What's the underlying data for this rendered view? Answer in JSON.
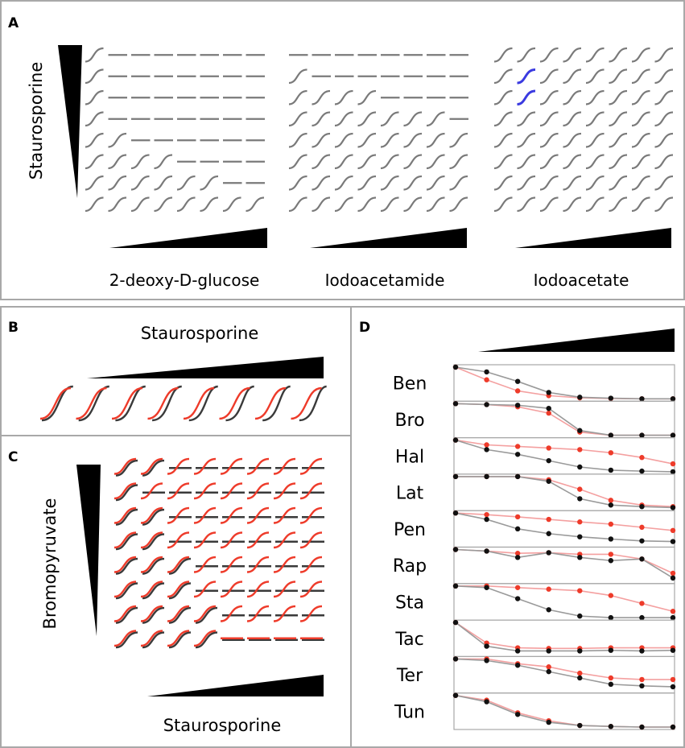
{
  "panels": {
    "a": {
      "letter": "A",
      "vertical_label": "Staurosporine",
      "grids": [
        {
          "name": "2-deoxy-D-glucose",
          "shape": [
            "S.......",
            "S.......",
            "S.......",
            "SD......",
            "SSD.....",
            "SSSSD...",
            "SSSSSSD.",
            "SSSSSSSS"
          ]
        },
        {
          "name": "Iodoacetamide",
          "shape": [
            "DDDDDDDD",
            "SDDDDDDD",
            "SSSSDDDD",
            "SSSSSSSD",
            "SSSSSSSS",
            "SSSSSSSS",
            "SSSSSSSS",
            "SSSSSSSS"
          ]
        },
        {
          "name": "Iodoacetate",
          "shape": [
            "SSSSSSSS",
            "SSSSSSSS",
            "SSSSSSSS",
            "SSSSSSSS",
            "SSSSSSSS",
            "SSSSSSSS",
            "SSSSSSSS",
            "SSSSSSSS"
          ],
          "highlight_color": "#3a3ae0",
          "highlight_cells": [
            [
              1,
              1
            ],
            [
              2,
              1
            ]
          ]
        }
      ]
    },
    "b": {
      "letter": "B",
      "title": "Staurosporine",
      "count": 8
    },
    "c": {
      "letter": "C",
      "vertical_label": "Bromopyruvate",
      "bottom_label": "Staurosporine",
      "black_shape": [
        "SSDDDDDD",
        "SDDDDDDD",
        "SSDDDDDD",
        "SSDDDDDD",
        "SSSDDDDD",
        "SSSDDDDD",
        "SSSSDDDD",
        "SSSSDDDD"
      ],
      "red_shape": [
        "SSSSSSSS",
        "SSSSSSSS",
        "SSSSSSSS",
        "SSSSSSSS",
        "SSSSSSSS",
        "SSSSSSSS",
        "SSSSSSSS",
        "SSSSDDDD"
      ]
    },
    "d": {
      "letter": "D",
      "rows": [
        {
          "label": "Ben",
          "black": [
            1.0,
            0.85,
            0.55,
            0.2,
            0.05,
            0.02,
            0.0,
            0.0
          ],
          "red": [
            1.0,
            0.6,
            0.25,
            0.1,
            0.03,
            0.01,
            0.0,
            0.0
          ]
        },
        {
          "label": "Bro",
          "black": [
            1.0,
            0.97,
            0.95,
            0.85,
            0.15,
            0.0,
            0.0,
            0.0
          ],
          "red": [
            1.0,
            0.97,
            0.9,
            0.7,
            0.1,
            0.0,
            0.0,
            0.0
          ]
        },
        {
          "label": "Hal",
          "black": [
            1.0,
            0.7,
            0.55,
            0.35,
            0.15,
            0.05,
            0.02,
            0.0
          ],
          "red": [
            1.0,
            0.85,
            0.8,
            0.75,
            0.7,
            0.6,
            0.45,
            0.25
          ]
        },
        {
          "label": "Lat",
          "black": [
            1.0,
            1.0,
            1.0,
            0.85,
            0.3,
            0.1,
            0.05,
            0.02
          ],
          "red": [
            1.0,
            1.0,
            1.0,
            0.9,
            0.6,
            0.25,
            0.1,
            0.05
          ]
        },
        {
          "label": "Pen",
          "black": [
            1.0,
            0.8,
            0.5,
            0.35,
            0.25,
            0.18,
            0.12,
            0.1
          ],
          "red": [
            1.0,
            0.95,
            0.88,
            0.8,
            0.72,
            0.65,
            0.55,
            0.45
          ]
        },
        {
          "label": "Rap",
          "black": [
            1.0,
            0.95,
            0.75,
            0.9,
            0.75,
            0.65,
            0.7,
            0.1
          ],
          "red": [
            1.0,
            0.95,
            0.88,
            0.9,
            0.85,
            0.85,
            0.7,
            0.25
          ]
        },
        {
          "label": "Sta",
          "black": [
            1.0,
            0.95,
            0.6,
            0.25,
            0.05,
            0.0,
            0.0,
            0.0
          ],
          "red": [
            1.0,
            1.0,
            0.95,
            0.9,
            0.85,
            0.7,
            0.45,
            0.2
          ]
        },
        {
          "label": "Tac",
          "black": [
            1.0,
            0.25,
            0.1,
            0.1,
            0.1,
            0.12,
            0.1,
            0.12
          ],
          "red": [
            1.0,
            0.35,
            0.2,
            0.18,
            0.18,
            0.2,
            0.2,
            0.2
          ]
        },
        {
          "label": "Ter",
          "black": [
            1.0,
            0.95,
            0.8,
            0.6,
            0.4,
            0.2,
            0.15,
            0.12
          ],
          "red": [
            1.0,
            1.0,
            0.85,
            0.75,
            0.55,
            0.4,
            0.35,
            0.35
          ]
        },
        {
          "label": "Tun",
          "black": [
            1.0,
            0.8,
            0.4,
            0.15,
            0.05,
            0.02,
            0.0,
            0.0
          ],
          "red": [
            1.0,
            0.85,
            0.45,
            0.2,
            0.05,
            0.02,
            0.0,
            0.0
          ]
        }
      ]
    }
  },
  "colors": {
    "black_series": "#3a3a3a",
    "grey_series": "#7a7a7a",
    "red_series": "#ee3b2a",
    "red_line": "#f4a0a0",
    "grey_line": "#9a9a9a",
    "border": "#a8a8a8"
  }
}
